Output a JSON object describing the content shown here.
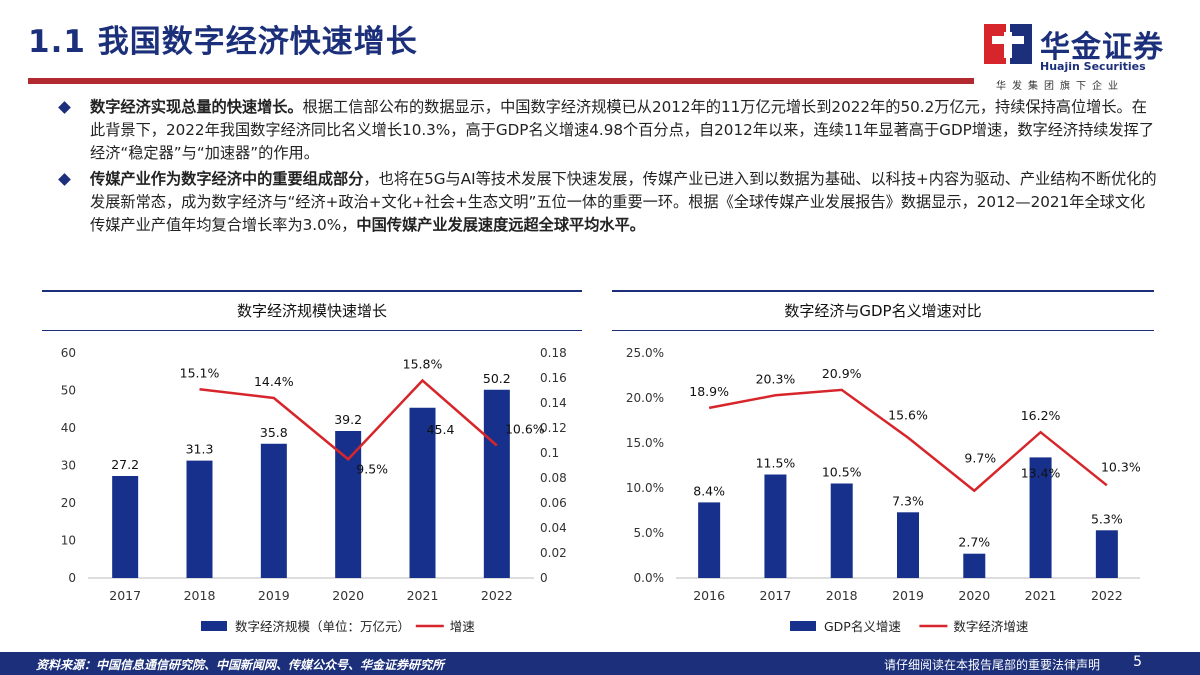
{
  "page_title": "1.1 我国数字经济快速增长",
  "logo": {
    "cn": "华金证券",
    "en": "Huajin Securities",
    "sub": "华发集团旗下企业"
  },
  "bullets": [
    {
      "bold": "数字经济实现总量的快速增长。",
      "text": "根据工信部公布的数据显示，中国数字经济规模已从2012年的11万亿元增长到2022年的50.2万亿元，持续保持高位增长。在此背景下，2022年我国数字经济同比名义增长10.3%，高于GDP名义增速4.98个百分点，自2012年以来，连续11年显著高于GDP增速，数字经济持续发挥了经济“稳定器”与“加速器”的作用。"
    },
    {
      "bold": "传媒产业作为数字经济中的重要组成部分",
      "text": "，也将在5G与AI等技术发展下快速发展，传媒产业已进入到以数据为基础、以科技+内容为驱动、产业结构不断优化的发展新常态，成为数字经济与“经济+政治+文化+社会+生态文明”五位一体的重要一环。根据《全球传媒产业发展报告》数据显示，2012—2021年全球文化传媒产业产值年均复合增长率为3.0%，",
      "bold2": "中国传媒产业发展速度远超全球平均水平。"
    }
  ],
  "chart_data": [
    {
      "type": "bar",
      "title": "数字经济规模快速增长",
      "categories": [
        "2017",
        "2018",
        "2019",
        "2020",
        "2021",
        "2022"
      ],
      "series": [
        {
          "name": "数字经济规模（单位：万亿元）",
          "type": "bar",
          "values": [
            27.2,
            31.3,
            35.8,
            39.2,
            45.4,
            50.2
          ],
          "labels": [
            "27.2",
            "31.3",
            "35.8",
            "39.2",
            "45.4",
            "50.2"
          ]
        },
        {
          "name": "增速",
          "type": "line",
          "axis": "right",
          "values": [
            null,
            0.151,
            0.144,
            0.095,
            0.158,
            0.106
          ],
          "labels": [
            "",
            "15.1%",
            "14.4%",
            "9.5%",
            "15.8%",
            "10.6%"
          ]
        }
      ],
      "ylim": [
        0,
        60
      ],
      "yticks": [
        "0",
        "10",
        "20",
        "30",
        "40",
        "50",
        "60"
      ],
      "y2lim": [
        0,
        0.18
      ],
      "y2ticks": [
        "0",
        "0.02",
        "0.04",
        "0.06",
        "0.08",
        "0.1",
        "0.12",
        "0.14",
        "0.16",
        "0.18"
      ],
      "legend": "bottom",
      "colors": {
        "bar": "#17308c",
        "line": "#d7262b"
      }
    },
    {
      "type": "bar",
      "title": "数字经济与GDP名义增速对比",
      "categories": [
        "2016",
        "2017",
        "2018",
        "2019",
        "2020",
        "2021",
        "2022"
      ],
      "series": [
        {
          "name": "GDP名义增速",
          "type": "bar",
          "values": [
            8.4,
            11.5,
            10.5,
            7.3,
            2.7,
            13.4,
            5.3
          ],
          "labels": [
            "8.4%",
            "11.5%",
            "10.5%",
            "7.3%",
            "2.7%",
            "13.4%",
            "5.3%"
          ]
        },
        {
          "name": "数字经济增速",
          "type": "line",
          "values": [
            18.9,
            20.3,
            20.9,
            15.6,
            9.7,
            16.2,
            10.3
          ],
          "labels": [
            "18.9%",
            "20.3%",
            "20.9%",
            "15.6%",
            "9.7%",
            "16.2%",
            "10.3%"
          ]
        }
      ],
      "ylim": [
        0,
        25
      ],
      "yticks": [
        "0.0%",
        "5.0%",
        "10.0%",
        "15.0%",
        "20.0%",
        "25.0%"
      ],
      "legend": "bottom",
      "colors": {
        "bar": "#17308c",
        "line": "#d7262b"
      }
    }
  ],
  "footer": {
    "source": "资料来源：中国信息通信研究院、中国新闻网、传媒公众号、华金证券研究所",
    "disclaimer": "请仔细阅读在本报告尾部的重要法律声明",
    "page": "5"
  }
}
